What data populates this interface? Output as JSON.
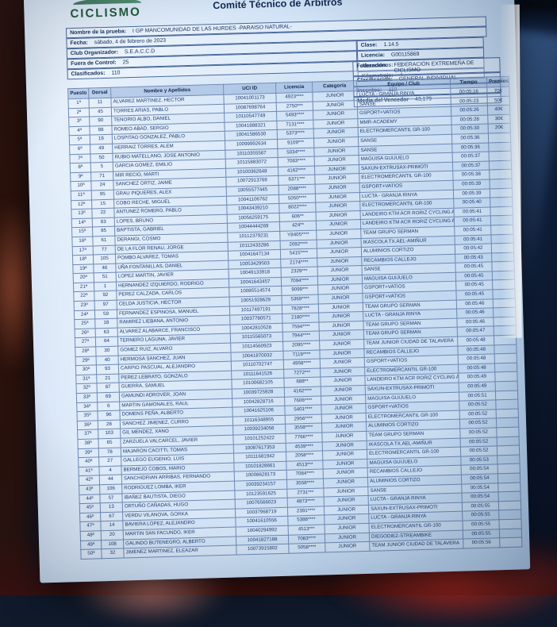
{
  "colors": {
    "logo_green": "#1f5a3c",
    "ink_navy": "#1d3a6e",
    "paper_tint": "#d9e8f8"
  },
  "header": {
    "logo_text": "CICLISMO",
    "title": "Comité Técnico de Árbitros",
    "corner_fragment": "MO",
    "fields": {
      "prueba": {
        "label": "Nombre de la prueba:",
        "value": "I GP MANCOMUNIDAD DE LAS HURDES -PARAISO NATURAL-"
      },
      "fecha": {
        "label": "Fecha:",
        "value": "sábado, 4 de febrero de 2023"
      },
      "club": {
        "label": "Club Organizador:",
        "value": "S.E.A.C.C.D"
      },
      "fuera": {
        "label": "Fuera de Control:",
        "value": "25"
      },
      "clasificados": {
        "label": "Clasificados:",
        "value": "110"
      },
      "clase": {
        "label": "Clase:",
        "value": "1.14.5"
      },
      "licencia": {
        "label": "Licencia:",
        "value": "G00115869"
      },
      "abandonos": {
        "label": "Abandonos:",
        "value": "0"
      },
      "kilometraje": {
        "label": "Kilometraje:",
        "value": "4"
      },
      "federacion": {
        "label": "Federación:",
        "value": "FEDERACIÓN EXTREMEÑA DE CICLISMO"
      },
      "clasificacion": {
        "label": "Clasificación:",
        "value": "GENERAL INDIVIDUAL"
      },
      "inscritos": {
        "label": "Inscritos:",
        "value": "110"
      },
      "media": {
        "label": "Media del Vencedor",
        "value": "43,179"
      }
    }
  },
  "table": {
    "columns": [
      "Puesto",
      "Dorsal",
      "Nombre y Apellidos",
      "UCI ID",
      "Licencia",
      "Categoría",
      "Equipo / Club",
      "Tiempo",
      "Premios"
    ],
    "rows": [
      [
        "1ª",
        "11",
        "ALVAREZ MARTINEZ, HECTOR",
        "10041001173",
        "4923****",
        "JUNIOR",
        "LUCTA - GRANJA RINYA",
        "00:05:16",
        "70€"
      ],
      [
        "2ª",
        "45",
        "TORRES ARIAS, PABLO",
        "10087698764",
        "2750***",
        "JUNIOR",
        "SANSE",
        "00:05:23",
        "50€"
      ],
      [
        "3ª",
        "90",
        "TENORIO ALBO, DANIEL",
        "10110547749",
        "5493****",
        "JUNIOR",
        "GSPORT+VATIOS",
        "00:05:26",
        "40€"
      ],
      [
        "4ª",
        "98",
        "ROMEO ABAD, SERGIO",
        "10041888321",
        "7131****",
        "JUNIOR",
        "MMR-ACADEMY",
        "00:05:28",
        "30€"
      ],
      [
        "5ª",
        "19",
        "LOSPITAO GONZALEZ, PABLO",
        "10041586530",
        "5373****",
        "JUNIOR",
        "ELECTROMERCANTIL GR-100",
        "00:05:30",
        "20€"
      ],
      [
        "6ª",
        "49",
        "HERRAIZ TORRES, ALEM",
        "10099992634",
        "9109***",
        "JUNIOR",
        "SANSE",
        "00:05:36",
        ""
      ],
      [
        "7ª",
        "50",
        "RUBIO MATELLANO, JOSE ANTONIO",
        "10110355567",
        "5034****",
        "JUNIOR",
        "SANSE",
        "00:05:36",
        ""
      ],
      [
        "8ª",
        "5",
        "GARCIA GOMEZ, EMILIO",
        "10115883072",
        "7083****",
        "JUNIOR",
        "MAGUISA GUIJUELO",
        "00:05:37",
        ""
      ],
      [
        "9ª",
        "71",
        "MIR RECIO, MARTI",
        "10100362648",
        "4162****",
        "JUNIOR",
        "SAXUN-EXTRUSAX-PRIMOTI",
        "00:05:37",
        ""
      ],
      [
        "10ª",
        "24",
        "SANCHEZ ORTIZ, JAIME",
        "10072913769",
        "6371***",
        "JUNIOR",
        "ELECTROMERCANTIL GR-100",
        "00:05:38",
        ""
      ],
      [
        "11ª",
        "95",
        "GRAU PIQUERES, ALEX",
        "10055577445",
        "2088****",
        "JUNIOR",
        "GSPORT+VATIOS",
        "00:05:39",
        ""
      ],
      [
        "12ª",
        "15",
        "COBO RECHE, MIGUEL",
        "10041106762",
        "5050****",
        "JUNIOR",
        "LUCTA - GRANJA RINYA",
        "00:05:39",
        ""
      ],
      [
        "13ª",
        "22",
        "ANTUNEZ ROMERO, PABLO",
        "10043439210",
        "8022****",
        "JUNIOR",
        "ELECTROMERCANTIL GR-100",
        "00:05:40",
        ""
      ],
      [
        "14ª",
        "83",
        "LOPES, BRUNO",
        "10056259175",
        "606**",
        "JUNIOR",
        "LANDEIRO KTM ACR RORIZ CYCLING AC",
        "00:05:41",
        ""
      ],
      [
        "15ª",
        "85",
        "BAPTISTA, GABRIEL",
        "10044444269",
        "424**",
        "JUNIOR",
        "LANDEIRO KTM ACR RORIZ CYCLING AC",
        "00:05:41",
        ""
      ],
      [
        "16ª",
        "61",
        "DERANGI, COSMO",
        "10112379231",
        "Y8405****",
        "JUNIOR",
        "TEAM GRUPO SERMAN",
        "00:05:41",
        ""
      ],
      [
        "17ª",
        "77",
        "DE LA FLOR RENAU, JORGE",
        "10112433286",
        "2092****",
        "JUNIOR",
        "IKASCOLA TX.AEL-AMIÑUR",
        "00:05:41",
        ""
      ],
      [
        "18ª",
        "105",
        "POMBO ALVAREZ, TOMAS",
        "10041647134",
        "5415****",
        "JUNIOR",
        "ALUMINIOS CORTIZO",
        "00:05:42",
        ""
      ],
      [
        "19ª",
        "46",
        "UÑA FONTANILLAS, DANIEL",
        "10053429503",
        "2174****",
        "JUNIOR",
        "RECAMBIOS CALLEJO",
        "00:05:43",
        ""
      ],
      [
        "20ª",
        "51",
        "LOPEZ MARTIN, JAVIER",
        "10049133918",
        "2329***",
        "JUNIOR",
        "SANSE",
        "00:05:45",
        ""
      ],
      [
        "21ª",
        "1",
        "HERNANDEZ IZQUIERDO, RODRIGO",
        "10041643457",
        "7094****",
        "JUNIOR",
        "MAGUISA GUIJUELO",
        "00:05:45",
        ""
      ],
      [
        "22ª",
        "92",
        "PEREZ CALZADA, CARLOS",
        "10085514574",
        "9099***",
        "JUNIOR",
        "GSPORT+VATIOS",
        "00:05:45",
        ""
      ],
      [
        "23ª",
        "97",
        "CELDA JUSTICIA, HECTOR",
        "10051928629",
        "5369****",
        "JUNIOR",
        "GSPORT+VATIOS",
        "00:05:45",
        ""
      ],
      [
        "24ª",
        "59",
        "FERNANDEZ ESPINOSA, MANUEL",
        "10117497191",
        "7828****",
        "JUNIOR",
        "TEAM GRUPO SERMAN",
        "00:05:46",
        ""
      ],
      [
        "25ª",
        "18",
        "RAMIREZ LIEBANA, ANTONIO",
        "10037780571",
        "2180****",
        "JUNIOR",
        "LUCTA - GRANJA RINYA",
        "00:05:46",
        ""
      ],
      [
        "26ª",
        "63",
        "ALVAREZ ALABARCE, FRANCISCO",
        "10042810528",
        "7594****",
        "JUNIOR",
        "TEAM GRUPO SERMAN",
        "00:05:46",
        ""
      ],
      [
        "27ª",
        "64",
        "TERNERO LAGUNA, JAVIER",
        "10115565073",
        "7944****",
        "JUNIOR",
        "TEAM GRUPO SERMAN",
        "00:05:47",
        ""
      ],
      [
        "28ª",
        "30",
        "GOMEZ RUIZ, ALVARO",
        "10114560923",
        "2095****",
        "JUNIOR",
        "TEAM JUNIOR CIUDAD DE TALAVERA",
        "00:05:48",
        ""
      ],
      [
        "29ª",
        "40",
        "HERMOSA SANCHEZ, JUAN",
        "10041870032",
        "7119****",
        "JUNIOR",
        "RECAMBIOS CALLEJO",
        "00:05:48",
        ""
      ],
      [
        "30ª",
        "93",
        "CARPIO PASCUAL, ALEJANDRO",
        "10110702747",
        "4958****",
        "JUNIOR",
        "GSPORT+VATIOS",
        "00:05:48",
        ""
      ],
      [
        "31ª",
        "21",
        "PEREZ LEBRATO, GONZALO",
        "10111641526",
        "7272***",
        "JUNIOR",
        "ELECTROMERCANTIL GR-100",
        "00:05:48",
        ""
      ],
      [
        "32ª",
        "87",
        "GUERRA, SAMUEL",
        "10100682105",
        "688**",
        "JUNIOR",
        "LANDEIRO KTM ACR RORIZ CYCLING AC",
        "00:05:49",
        ""
      ],
      [
        "33ª",
        "69",
        "GAMUNDI ADROVER, JOAN",
        "10039725928",
        "4162****",
        "JUNIOR",
        "SAXUN-EXTRUSAX-PRIMOTI",
        "00:05:49",
        ""
      ],
      [
        "34ª",
        "6",
        "MARTIN GAMONALES, RAUL",
        "10042828716",
        "7606****",
        "JUNIOR",
        "MAGUISA GUIJUELO",
        "00:05:51",
        ""
      ],
      [
        "35ª",
        "96",
        "DOMENS PEÑA, ALBERTO",
        "10041625106",
        "5401****",
        "JUNIOR",
        "GSPORT+VATIOS",
        "00:05:52",
        ""
      ],
      [
        "36ª",
        "28",
        "SANCHEZ JIMENEZ, CURRO",
        "10116348955",
        "2956****",
        "JUNIOR",
        "ELECTROMERCANTIL GR-100",
        "00:05:52",
        ""
      ],
      [
        "37ª",
        "103",
        "GIL MENDEZ, XANO",
        "10039234056",
        "3558****",
        "JUNIOR",
        "ALUMINIOS CORTIZO",
        "00:05:52",
        ""
      ],
      [
        "38ª",
        "65",
        "ZARZUELA VALCARCEL, JAVIER",
        "10101252422",
        "7766****",
        "JUNIOR",
        "TEAM GRUPO SERMAN",
        "00:05:52",
        ""
      ],
      [
        "39ª",
        "78",
        "MAJARON CACITTI, TOMAS",
        "10087617353",
        "4539****",
        "JUNIOR",
        "IKASCOLA TX.AEL-AMIÑUR",
        "00:05:52",
        ""
      ],
      [
        "40ª",
        "27",
        "GALLEGO EUGENIO, LUIS",
        "10111681942",
        "2058****",
        "JUNIOR",
        "ELECTROMERCANTIL GR-100",
        "00:05:52",
        ""
      ],
      [
        "41ª",
        "4",
        "BERMEJO COBOS, MARIO",
        "10101828661",
        "4513***",
        "JUNIOR",
        "MAGUISA GUIJUELO",
        "00:05:53",
        ""
      ],
      [
        "42ª",
        "44",
        "SANCHIDRIAN ARRIBAS, FERNANDO",
        "10008628173",
        "7084****",
        "JUNIOR",
        "RECAMBIOS CALLEJO",
        "00:05:54",
        ""
      ],
      [
        "43ª",
        "106",
        "RODRIGUEZ LOMBA, IKER",
        "10039234157",
        "3558****",
        "JUNIOR",
        "ALUMINIOS CORTIZO",
        "00:05:54",
        ""
      ],
      [
        "44ª",
        "57",
        "IBAÑEZ BAUTISTA, DIEGO",
        "10123591625",
        "2731***",
        "JUNIOR",
        "SANSE",
        "00:05:54",
        ""
      ],
      [
        "45ª",
        "13",
        "ORTUÑO CAÑADAS, HUGO",
        "10076566023",
        "4873****",
        "JUNIOR",
        "LUCTA - GRANJA RINYA",
        "00:05:54",
        ""
      ],
      [
        "46ª",
        "67",
        "VERDU VILANOVA, GORKA",
        "10037968719",
        "2391****",
        "JUNIOR",
        "SAXUN-EXTRUSAX-PRIMOTI",
        "00:05:55",
        ""
      ],
      [
        "47ª",
        "14",
        "BAVIERA LOPEZ, ALEJANDRO",
        "10041610556",
        "5388****",
        "JUNIOR",
        "LUCTA - GRANJA RINYA",
        "00:05:55",
        ""
      ],
      [
        "48ª",
        "20",
        "MARTIN SAN FACUNDO, IKER",
        "10040294992",
        "4513***",
        "JUNIOR",
        "ELECTROMERCANTIL GR-100",
        "00:05:55",
        ""
      ],
      [
        "49ª",
        "108",
        "GALINDO BUTENEGRO, ALBERTO",
        "10041827188",
        "7083****",
        "JUNIOR",
        "DIEGODIEZ-STREAMBIKE",
        "00:05:55",
        ""
      ],
      [
        "50ª",
        "32",
        "JIMENEZ MARTINEZ, ELEAZAR",
        "10073915802",
        "5058****",
        "JUNIOR",
        "TEAM JUNIOR CIUDAD DE TALAVERA",
        "00:05:56",
        ""
      ]
    ]
  }
}
